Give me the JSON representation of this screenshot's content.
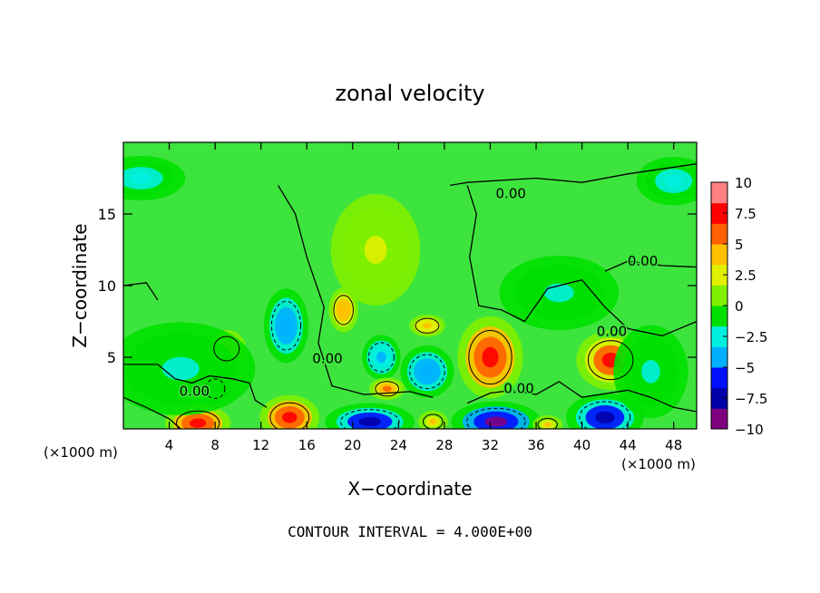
{
  "chart_data": {
    "type": "heatmap",
    "title": "zonal velocity",
    "xlabel": "X−coordinate",
    "ylabel": "Z−coordinate",
    "x_unit_left": "(×1000 m)",
    "x_unit_right": "(×1000 m)",
    "xlim": [
      0,
      50
    ],
    "ylim": [
      0,
      20
    ],
    "xticks": [
      4,
      8,
      12,
      16,
      20,
      24,
      28,
      32,
      36,
      40,
      44,
      48
    ],
    "yticks": [
      5,
      10,
      15
    ],
    "colorbar": {
      "min": -10,
      "max": 10,
      "tick_values": [
        10,
        7.5,
        5,
        2.5,
        0,
        -2.5,
        -5,
        -7.5,
        -10
      ],
      "tick_labels": [
        "10",
        "7.5",
        "5",
        "2.5",
        "0",
        "−2.5",
        "−5",
        "−7.5",
        "−10"
      ],
      "colors": [
        "#7f007f",
        "#0000a8",
        "#0010ff",
        "#00b0ff",
        "#00f0e0",
        "#00e000",
        "#80f000",
        "#e0f000",
        "#ffc000",
        "#ff6000",
        "#ff0000",
        "#ff8080"
      ]
    },
    "contour_labels": [
      "0.00",
      "0.00",
      "0.00",
      "0.00",
      "0.00",
      "0.00"
    ],
    "footer": "CONTOUR INTERVAL = 4.000E+00",
    "features": [
      {
        "x": 6.5,
        "z": 0.4,
        "value": 9,
        "sx": 2.2,
        "sz": 1.0
      },
      {
        "x": 14.5,
        "z": 0.8,
        "value": 9,
        "sx": 2.0,
        "sz": 1.2
      },
      {
        "x": 9,
        "z": 5.6,
        "value": 5,
        "sx": 1.3,
        "sz": 1.0
      },
      {
        "x": 14.2,
        "z": 7.2,
        "value": -5.5,
        "sx": 1.5,
        "sz": 2.0
      },
      {
        "x": 8,
        "z": 2.8,
        "value": -4,
        "sx": 1.0,
        "sz": 0.8
      },
      {
        "x": 19.2,
        "z": 8.3,
        "value": 5.5,
        "sx": 1.0,
        "sz": 1.2
      },
      {
        "x": 21.5,
        "z": 0.5,
        "value": -8,
        "sx": 3.0,
        "sz": 1.0
      },
      {
        "x": 22.5,
        "z": 5.0,
        "value": -5,
        "sx": 1.3,
        "sz": 1.2
      },
      {
        "x": 26.5,
        "z": 4.0,
        "value": -5.5,
        "sx": 1.8,
        "sz": 1.4
      },
      {
        "x": 23,
        "z": 2.8,
        "value": 6,
        "sx": 1.2,
        "sz": 0.6
      },
      {
        "x": 26.5,
        "z": 7.2,
        "value": 5,
        "sx": 1.2,
        "sz": 0.6
      },
      {
        "x": 27,
        "z": 0.5,
        "value": 4,
        "sx": 1.0,
        "sz": 0.6
      },
      {
        "x": 32,
        "z": 5.0,
        "value": 9,
        "sx": 2.2,
        "sz": 2.2
      },
      {
        "x": 32.5,
        "z": 0.5,
        "value": -9.5,
        "sx": 3.0,
        "sz": 1.1
      },
      {
        "x": 42.5,
        "z": 4.8,
        "value": 8,
        "sx": 2.3,
        "sz": 1.6
      },
      {
        "x": 42,
        "z": 0.8,
        "value": -8,
        "sx": 2.6,
        "sz": 1.3
      },
      {
        "x": 37,
        "z": 0.3,
        "value": 4,
        "sx": 1.0,
        "sz": 0.5
      },
      {
        "x": 1.5,
        "z": 17.5,
        "value": -3.5,
        "sx": 3.0,
        "sz": 1.2
      },
      {
        "x": 48,
        "z": 17.3,
        "value": -3.5,
        "sx": 2.5,
        "sz": 1.3
      },
      {
        "x": 5,
        "z": 4.2,
        "value": -2.2,
        "sx": 5.0,
        "sz": 2.5
      },
      {
        "x": 22,
        "z": 12.5,
        "value": 2.2,
        "sx": 3.0,
        "sz": 3.0
      },
      {
        "x": 38,
        "z": 9.5,
        "value": -2,
        "sx": 4.0,
        "sz": 2.0
      },
      {
        "x": 46,
        "z": 4.0,
        "value": -2.5,
        "sx": 2.5,
        "sz": 2.5
      }
    ]
  }
}
